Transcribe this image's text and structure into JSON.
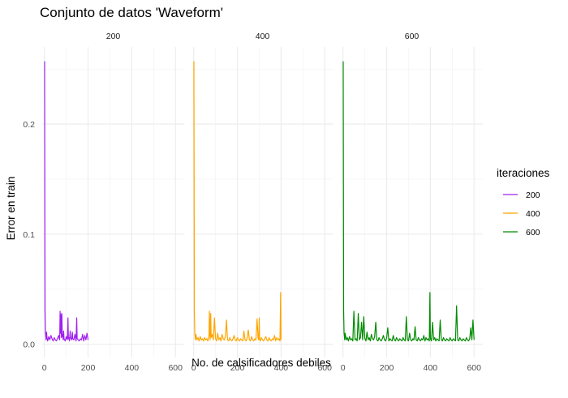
{
  "chart_data": {
    "type": "line",
    "title": "Conjunto de datos 'Waveform'",
    "xlabel": "No. de calsificadores debiles",
    "ylabel": "Error en train",
    "xlim": [
      -10,
      640
    ],
    "ylim": [
      -0.012,
      0.27
    ],
    "x_ticks": [
      0,
      200,
      400,
      600
    ],
    "y_ticks": [
      0.0,
      0.1,
      0.2
    ],
    "y_tick_labels": [
      "0.0",
      "0.1",
      "0.2"
    ],
    "grid": true,
    "facet_by": "iteraciones",
    "legend": {
      "title": "iteraciones",
      "position": "right"
    },
    "series": [
      {
        "name": "200",
        "color": "#a020f0",
        "x": [
          1,
          2,
          3,
          5,
          8,
          10,
          12,
          15,
          20,
          25,
          30,
          35,
          40,
          45,
          50,
          55,
          60,
          65,
          70,
          72,
          74,
          76,
          78,
          80,
          82,
          84,
          86,
          88,
          90,
          95,
          100,
          105,
          108,
          110,
          112,
          115,
          118,
          120,
          125,
          128,
          130,
          135,
          140,
          145,
          148,
          150,
          155,
          160,
          165,
          170,
          175,
          180,
          185,
          190,
          195,
          200
        ],
        "y": [
          0.257,
          0.15,
          0.03,
          0.01,
          0.004,
          0.011,
          0.006,
          0.003,
          0.007,
          0.004,
          0.008,
          0.005,
          0.003,
          0.006,
          0.004,
          0.003,
          0.005,
          0.008,
          0.004,
          0.03,
          0.01,
          0.027,
          0.006,
          0.028,
          0.007,
          0.009,
          0.004,
          0.012,
          0.005,
          0.003,
          0.007,
          0.004,
          0.024,
          0.005,
          0.006,
          0.003,
          0.012,
          0.006,
          0.004,
          0.011,
          0.005,
          0.004,
          0.009,
          0.003,
          0.024,
          0.005,
          0.004,
          0.003,
          0.005,
          0.004,
          0.009,
          0.003,
          0.008,
          0.004,
          0.01,
          0.004
        ]
      },
      {
        "name": "400",
        "color": "#ffa500",
        "x": [
          1,
          2,
          3,
          5,
          8,
          10,
          15,
          20,
          25,
          30,
          35,
          40,
          45,
          50,
          55,
          60,
          65,
          70,
          72,
          75,
          78,
          80,
          85,
          90,
          95,
          100,
          105,
          110,
          115,
          120,
          125,
          130,
          135,
          140,
          145,
          150,
          155,
          160,
          165,
          170,
          175,
          180,
          185,
          190,
          195,
          200,
          205,
          210,
          215,
          220,
          225,
          230,
          235,
          240,
          245,
          250,
          255,
          260,
          265,
          270,
          275,
          280,
          285,
          290,
          295,
          298,
          300,
          302,
          305,
          310,
          315,
          320,
          325,
          330,
          335,
          340,
          345,
          350,
          355,
          360,
          365,
          370,
          375,
          380,
          385,
          390,
          395,
          398,
          400
        ],
        "y": [
          0.257,
          0.15,
          0.03,
          0.01,
          0.004,
          0.009,
          0.004,
          0.006,
          0.003,
          0.007,
          0.004,
          0.005,
          0.003,
          0.006,
          0.004,
          0.005,
          0.003,
          0.008,
          0.03,
          0.004,
          0.028,
          0.006,
          0.009,
          0.004,
          0.024,
          0.005,
          0.003,
          0.01,
          0.004,
          0.006,
          0.003,
          0.009,
          0.005,
          0.004,
          0.007,
          0.022,
          0.004,
          0.003,
          0.006,
          0.004,
          0.003,
          0.005,
          0.008,
          0.004,
          0.003,
          0.006,
          0.004,
          0.003,
          0.005,
          0.004,
          0.003,
          0.012,
          0.004,
          0.003,
          0.006,
          0.013,
          0.004,
          0.003,
          0.007,
          0.004,
          0.003,
          0.005,
          0.004,
          0.023,
          0.005,
          0.004,
          0.024,
          0.005,
          0.003,
          0.006,
          0.004,
          0.003,
          0.005,
          0.007,
          0.004,
          0.003,
          0.006,
          0.004,
          0.003,
          0.005,
          0.004,
          0.008,
          0.003,
          0.006,
          0.004,
          0.005,
          0.003,
          0.047,
          0.004
        ]
      },
      {
        "name": "600",
        "color": "#008b00",
        "x": [
          1,
          2,
          3,
          5,
          8,
          10,
          15,
          20,
          25,
          30,
          35,
          40,
          45,
          50,
          55,
          60,
          65,
          70,
          75,
          80,
          85,
          90,
          95,
          100,
          105,
          110,
          115,
          120,
          125,
          130,
          135,
          140,
          145,
          150,
          155,
          160,
          165,
          170,
          175,
          180,
          185,
          190,
          195,
          200,
          205,
          210,
          215,
          220,
          225,
          230,
          235,
          240,
          245,
          250,
          255,
          260,
          265,
          270,
          275,
          280,
          285,
          290,
          295,
          300,
          305,
          310,
          315,
          320,
          325,
          330,
          335,
          340,
          345,
          350,
          355,
          360,
          365,
          370,
          375,
          380,
          385,
          390,
          395,
          398,
          400,
          402,
          405,
          410,
          415,
          420,
          425,
          430,
          435,
          440,
          445,
          450,
          455,
          460,
          465,
          470,
          475,
          480,
          485,
          490,
          495,
          500,
          505,
          510,
          515,
          520,
          525,
          530,
          535,
          540,
          545,
          550,
          555,
          560,
          565,
          570,
          575,
          580,
          585,
          590,
          595,
          600
        ],
        "y": [
          0.257,
          0.15,
          0.03,
          0.01,
          0.004,
          0.01,
          0.004,
          0.006,
          0.003,
          0.007,
          0.004,
          0.005,
          0.003,
          0.03,
          0.004,
          0.005,
          0.003,
          0.028,
          0.004,
          0.006,
          0.02,
          0.004,
          0.025,
          0.005,
          0.003,
          0.011,
          0.004,
          0.006,
          0.003,
          0.009,
          0.005,
          0.004,
          0.007,
          0.02,
          0.004,
          0.003,
          0.006,
          0.004,
          0.003,
          0.005,
          0.008,
          0.004,
          0.003,
          0.006,
          0.015,
          0.003,
          0.005,
          0.004,
          0.003,
          0.008,
          0.004,
          0.003,
          0.006,
          0.004,
          0.003,
          0.005,
          0.004,
          0.003,
          0.006,
          0.004,
          0.003,
          0.025,
          0.004,
          0.003,
          0.01,
          0.004,
          0.003,
          0.005,
          0.004,
          0.016,
          0.004,
          0.003,
          0.006,
          0.004,
          0.003,
          0.005,
          0.004,
          0.008,
          0.003,
          0.006,
          0.004,
          0.005,
          0.003,
          0.047,
          0.006,
          0.004,
          0.003,
          0.02,
          0.004,
          0.006,
          0.003,
          0.005,
          0.004,
          0.003,
          0.022,
          0.004,
          0.003,
          0.006,
          0.004,
          0.003,
          0.005,
          0.004,
          0.003,
          0.006,
          0.004,
          0.003,
          0.005,
          0.004,
          0.003,
          0.035,
          0.004,
          0.003,
          0.006,
          0.004,
          0.003,
          0.005,
          0.004,
          0.003,
          0.006,
          0.004,
          0.003,
          0.005,
          0.015,
          0.004,
          0.022,
          0.004
        ]
      }
    ]
  }
}
